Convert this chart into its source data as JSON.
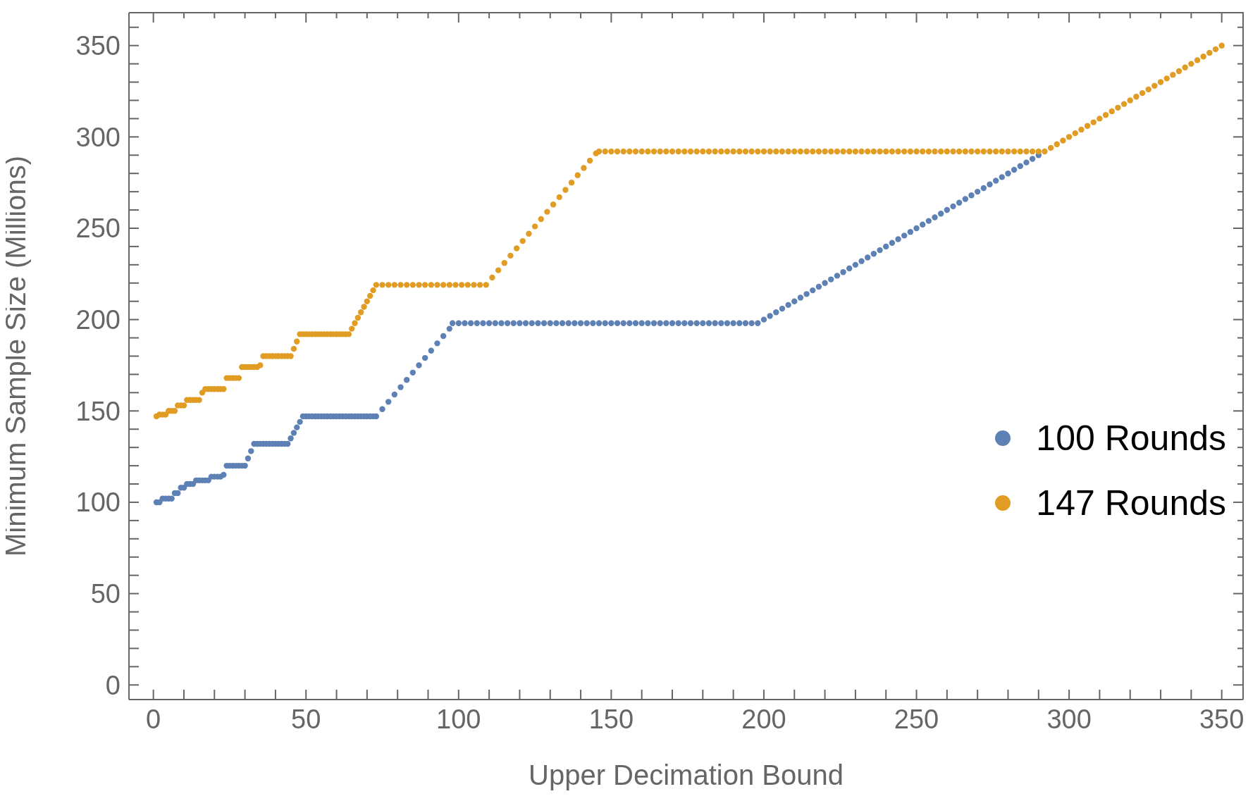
{
  "chart_data": {
    "type": "scatter",
    "xlabel": "Upper Decimation Bound",
    "ylabel": "Minimum Sample Size (Millions)",
    "marker": "circle",
    "legend": "right",
    "xlim": [
      -8,
      357
    ],
    "ylim": [
      -8,
      368
    ],
    "xticks": [
      0,
      {
        "value": 10,
        "label": null
      },
      {
        "value": 20,
        "label": null
      },
      {
        "value": 30,
        "label": null
      },
      {
        "value": 40,
        "label": null
      },
      50,
      {
        "value": 60,
        "label": null
      },
      {
        "value": 70,
        "label": null
      },
      {
        "value": 80,
        "label": null
      },
      {
        "value": 90,
        "label": null
      },
      100,
      {
        "value": 110,
        "label": null
      },
      {
        "value": 120,
        "label": null
      },
      {
        "value": 130,
        "label": null
      },
      {
        "value": 140,
        "label": null
      },
      150,
      {
        "value": 160,
        "label": null
      },
      {
        "value": 170,
        "label": null
      },
      {
        "value": 180,
        "label": null
      },
      {
        "value": 190,
        "label": null
      },
      200,
      {
        "value": 210,
        "label": null
      },
      {
        "value": 220,
        "label": null
      },
      {
        "value": 230,
        "label": null
      },
      {
        "value": 240,
        "label": null
      },
      250,
      {
        "value": 260,
        "label": null
      },
      {
        "value": 270,
        "label": null
      },
      {
        "value": 280,
        "label": null
      },
      {
        "value": 290,
        "label": null
      },
      300,
      {
        "value": 310,
        "label": null
      },
      {
        "value": 320,
        "label": null
      },
      {
        "value": 330,
        "label": null
      },
      {
        "value": 340,
        "label": null
      },
      350
    ],
    "yticks": [
      0,
      {
        "value": 10,
        "label": null
      },
      {
        "value": 20,
        "label": null
      },
      {
        "value": 30,
        "label": null
      },
      {
        "value": 40,
        "label": null
      },
      50,
      {
        "value": 60,
        "label": null
      },
      {
        "value": 70,
        "label": null
      },
      {
        "value": 80,
        "label": null
      },
      {
        "value": 90,
        "label": null
      },
      100,
      {
        "value": 110,
        "label": null
      },
      {
        "value": 120,
        "label": null
      },
      {
        "value": 130,
        "label": null
      },
      {
        "value": 140,
        "label": null
      },
      150,
      {
        "value": 160,
        "label": null
      },
      {
        "value": 170,
        "label": null
      },
      {
        "value": 180,
        "label": null
      },
      {
        "value": 190,
        "label": null
      },
      200,
      {
        "value": 210,
        "label": null
      },
      {
        "value": 220,
        "label": null
      },
      {
        "value": 230,
        "label": null
      },
      {
        "value": 240,
        "label": null
      },
      250,
      {
        "value": 260,
        "label": null
      },
      {
        "value": 270,
        "label": null
      },
      {
        "value": 280,
        "label": null
      },
      {
        "value": 290,
        "label": null
      },
      300,
      {
        "value": 310,
        "label": null
      },
      {
        "value": 320,
        "label": null
      },
      {
        "value": 330,
        "label": null
      },
      {
        "value": 340,
        "label": null
      },
      350,
      {
        "value": 360,
        "label": null
      }
    ],
    "series": [
      {
        "name": "100 Rounds",
        "color": "#5e81b5",
        "x": [
          1,
          2,
          3,
          4,
          5,
          6,
          7,
          8,
          9,
          10,
          11,
          12,
          13,
          14,
          15,
          16,
          17,
          18,
          19,
          20,
          21,
          22,
          23,
          24,
          25,
          26,
          27,
          28,
          29,
          30,
          31,
          32,
          33,
          34,
          35,
          36,
          37,
          38,
          39,
          40,
          41,
          42,
          43,
          44,
          45,
          46,
          47,
          48,
          49,
          50,
          51,
          52,
          53,
          54,
          55,
          56,
          57,
          58,
          59,
          60,
          61,
          62,
          63,
          64,
          65,
          66,
          67,
          68,
          69,
          70,
          71,
          72,
          73,
          75,
          77,
          79,
          81,
          83,
          85,
          87,
          89,
          91,
          93,
          95,
          97,
          98,
          100,
          102,
          104,
          106,
          108,
          110,
          112,
          114,
          116,
          118,
          120,
          122,
          124,
          126,
          128,
          130,
          132,
          134,
          136,
          138,
          140,
          142,
          144,
          146,
          148,
          150,
          152,
          154,
          156,
          158,
          160,
          162,
          164,
          166,
          168,
          170,
          172,
          174,
          176,
          178,
          180,
          182,
          184,
          186,
          188,
          190,
          192,
          194,
          196,
          198,
          200,
          202,
          204,
          206,
          208,
          210,
          212,
          214,
          216,
          218,
          220,
          222,
          224,
          226,
          228,
          230,
          232,
          234,
          236,
          238,
          240,
          242,
          244,
          246,
          248,
          250,
          252,
          254,
          256,
          258,
          260,
          262,
          264,
          266,
          268,
          270,
          272,
          274,
          276,
          278,
          280,
          282,
          284,
          286,
          288,
          290
        ],
        "values": [
          100,
          100,
          102,
          102,
          102,
          102,
          105,
          105,
          108,
          108,
          110,
          110,
          110,
          112,
          112,
          112,
          112,
          112,
          114,
          114,
          114,
          114,
          115,
          120,
          120,
          120,
          120,
          120,
          120,
          120,
          124,
          128,
          132,
          132,
          132,
          132,
          132,
          132,
          132,
          132,
          132,
          132,
          132,
          132,
          135,
          138,
          141,
          144,
          147,
          147,
          147,
          147,
          147,
          147,
          147,
          147,
          147,
          147,
          147,
          147,
          147,
          147,
          147,
          147,
          147,
          147,
          147,
          147,
          147,
          147,
          147,
          147,
          147,
          151,
          155,
          159,
          163,
          167,
          171,
          175,
          179,
          183,
          187,
          191,
          195,
          198,
          198,
          198,
          198,
          198,
          198,
          198,
          198,
          198,
          198,
          198,
          198,
          198,
          198,
          198,
          198,
          198,
          198,
          198,
          198,
          198,
          198,
          198,
          198,
          198,
          198,
          198,
          198,
          198,
          198,
          198,
          198,
          198,
          198,
          198,
          198,
          198,
          198,
          198,
          198,
          198,
          198,
          198,
          198,
          198,
          198,
          198,
          198,
          198,
          198,
          198,
          200,
          202,
          204,
          206,
          208,
          210,
          212,
          214,
          216,
          218,
          220,
          222,
          224,
          226,
          228,
          230,
          232,
          234,
          236,
          238,
          240,
          242,
          244,
          246,
          248,
          250,
          252,
          254,
          256,
          258,
          260,
          262,
          264,
          266,
          268,
          270,
          272,
          274,
          276,
          278,
          280,
          282,
          284,
          286,
          288,
          290
        ]
      },
      {
        "name": "147 Rounds",
        "color": "#e19c24",
        "x": [
          1,
          2,
          3,
          4,
          5,
          6,
          7,
          8,
          9,
          10,
          11,
          12,
          13,
          14,
          15,
          16,
          17,
          18,
          19,
          20,
          21,
          22,
          23,
          24,
          25,
          26,
          27,
          28,
          29,
          30,
          31,
          32,
          33,
          34,
          35,
          36,
          37,
          38,
          39,
          40,
          41,
          42,
          43,
          44,
          45,
          46,
          47,
          48,
          49,
          50,
          51,
          52,
          53,
          54,
          55,
          56,
          57,
          58,
          59,
          60,
          61,
          62,
          63,
          64,
          65,
          66,
          67,
          68,
          69,
          70,
          71,
          72,
          73,
          75,
          77,
          79,
          81,
          83,
          85,
          87,
          89,
          91,
          93,
          95,
          97,
          99,
          101,
          103,
          105,
          107,
          109,
          111,
          113,
          115,
          117,
          119,
          121,
          123,
          125,
          127,
          129,
          131,
          133,
          135,
          137,
          139,
          141,
          143,
          145,
          146,
          148,
          150,
          152,
          154,
          156,
          158,
          160,
          162,
          164,
          166,
          168,
          170,
          172,
          174,
          176,
          178,
          180,
          182,
          184,
          186,
          188,
          190,
          192,
          194,
          196,
          198,
          200,
          202,
          204,
          206,
          208,
          210,
          212,
          214,
          216,
          218,
          220,
          222,
          224,
          226,
          228,
          230,
          232,
          234,
          236,
          238,
          240,
          242,
          244,
          246,
          248,
          250,
          252,
          254,
          256,
          258,
          260,
          262,
          264,
          266,
          268,
          270,
          272,
          274,
          276,
          278,
          280,
          282,
          284,
          286,
          288,
          290,
          292,
          294,
          296,
          298,
          300,
          302,
          304,
          306,
          308,
          310,
          312,
          314,
          316,
          318,
          320,
          322,
          324,
          326,
          328,
          330,
          332,
          334,
          336,
          338,
          340,
          342,
          344,
          346,
          348,
          350
        ],
        "values": [
          147,
          148,
          148,
          148,
          150,
          150,
          150,
          153,
          153,
          153,
          156,
          156,
          156,
          156,
          156,
          160,
          162,
          162,
          162,
          162,
          162,
          162,
          162,
          168,
          168,
          168,
          168,
          168,
          174,
          174,
          174,
          174,
          174,
          174,
          175,
          180,
          180,
          180,
          180,
          180,
          180,
          180,
          180,
          180,
          180,
          184,
          188,
          192,
          192,
          192,
          192,
          192,
          192,
          192,
          192,
          192,
          192,
          192,
          192,
          192,
          192,
          192,
          192,
          192,
          195,
          198,
          201,
          204,
          207,
          210,
          213,
          216,
          219,
          219,
          219,
          219,
          219,
          219,
          219,
          219,
          219,
          219,
          219,
          219,
          219,
          219,
          219,
          219,
          219,
          219,
          219,
          223,
          227,
          231,
          235,
          239,
          243,
          247,
          251,
          255,
          259,
          263,
          267,
          271,
          275,
          279,
          283,
          287,
          291,
          292,
          292,
          292,
          292,
          292,
          292,
          292,
          292,
          292,
          292,
          292,
          292,
          292,
          292,
          292,
          292,
          292,
          292,
          292,
          292,
          292,
          292,
          292,
          292,
          292,
          292,
          292,
          292,
          292,
          292,
          292,
          292,
          292,
          292,
          292,
          292,
          292,
          292,
          292,
          292,
          292,
          292,
          292,
          292,
          292,
          292,
          292,
          292,
          292,
          292,
          292,
          292,
          292,
          292,
          292,
          292,
          292,
          292,
          292,
          292,
          292,
          292,
          292,
          292,
          292,
          292,
          292,
          292,
          292,
          292,
          292,
          292,
          292,
          292,
          294,
          296,
          298,
          300,
          302,
          304,
          306,
          308,
          310,
          312,
          314,
          316,
          318,
          320,
          322,
          324,
          326,
          328,
          330,
          332,
          334,
          336,
          338,
          340,
          342,
          344,
          346,
          348,
          350
        ]
      }
    ]
  }
}
